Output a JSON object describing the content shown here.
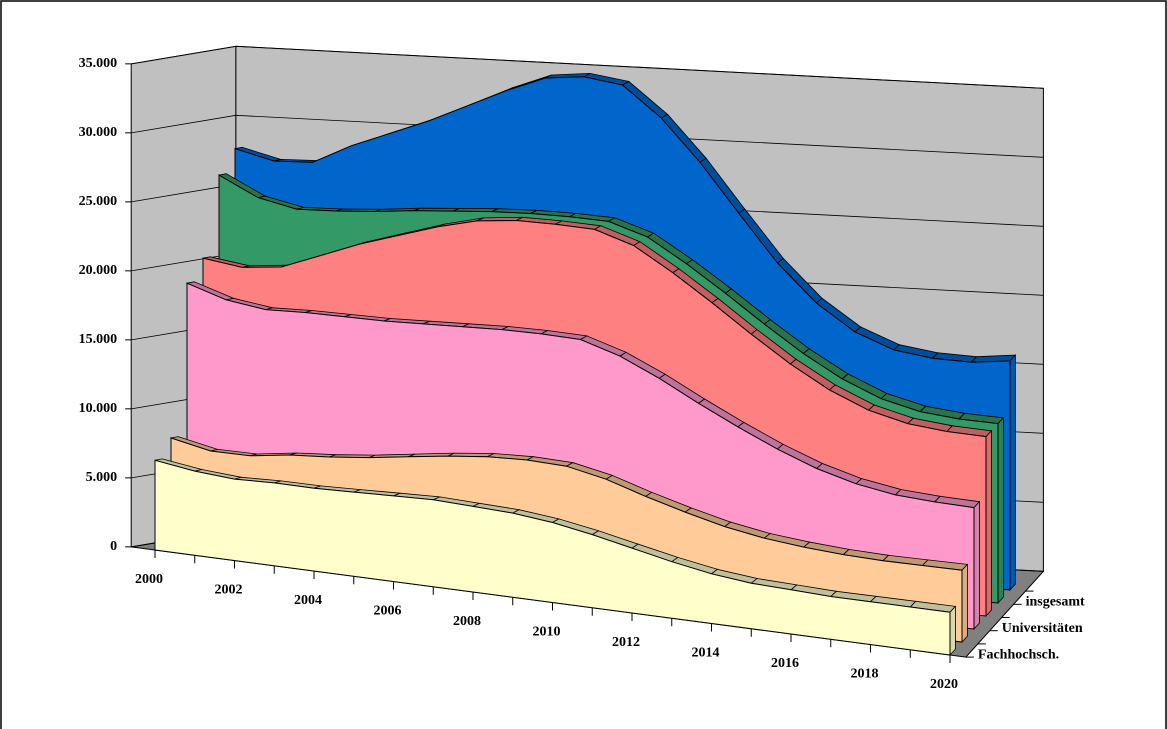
{
  "chart_data": {
    "type": "area3d",
    "x": [
      2000,
      2001,
      2002,
      2003,
      2004,
      2005,
      2006,
      2007,
      2008,
      2009,
      2010,
      2011,
      2012,
      2013,
      2014,
      2015,
      2016,
      2017,
      2018,
      2019,
      2020
    ],
    "xticks": [
      2000,
      2002,
      2004,
      2006,
      2008,
      2010,
      2012,
      2014,
      2016,
      2018,
      2020
    ],
    "ylim": [
      0,
      35000
    ],
    "yticks": [
      0,
      {
        "value": 5000,
        "label": "5.000"
      },
      {
        "value": 10000,
        "label": "10.000"
      },
      {
        "value": 15000,
        "label": "15.000"
      },
      {
        "value": 20000,
        "label": "20.000"
      },
      {
        "value": 25000,
        "label": "25.000"
      },
      {
        "value": 30000,
        "label": "30.000"
      },
      {
        "value": 35000,
        "label": "35.000"
      }
    ],
    "grid": true,
    "z_categories": [
      "Fachhochsch.",
      null,
      "Universitäten",
      null,
      "insgesamt",
      null
    ],
    "series": [
      {
        "color": "#ffffcc",
        "values": [
          6500,
          6100,
          5900,
          6000,
          6000,
          6100,
          6200,
          6300,
          6200,
          6100,
          5800,
          5300,
          4700,
          4100,
          3600,
          3300,
          3200,
          3100,
          3100,
          3100,
          3100
        ]
      },
      {
        "color": "#ffcc99",
        "values": [
          7900,
          7300,
          7300,
          7700,
          7900,
          8200,
          8600,
          9000,
          9300,
          9400,
          9300,
          8700,
          7800,
          7000,
          6300,
          5800,
          5500,
          5300,
          5200,
          5200,
          5200
        ]
      },
      {
        "color": "#ff99cc",
        "values": [
          18900,
          18000,
          17600,
          17700,
          17700,
          17700,
          17800,
          17900,
          18000,
          18000,
          17900,
          17000,
          15700,
          14200,
          12800,
          11500,
          10400,
          9600,
          9100,
          8900,
          8800
        ]
      },
      {
        "color": "#ff8080",
        "values": [
          20500,
          20100,
          20400,
          21500,
          22600,
          23500,
          24400,
          25100,
          25400,
          25400,
          25300,
          24400,
          22700,
          20800,
          18800,
          16900,
          15300,
          14100,
          13400,
          13100,
          13000
        ]
      },
      {
        "color": "#339966",
        "values": [
          26300,
          24900,
          24300,
          24400,
          24600,
          24900,
          25100,
          25300,
          25400,
          25400,
          25300,
          24400,
          22700,
          20800,
          18800,
          16900,
          15300,
          14100,
          13400,
          13100,
          13000
        ]
      },
      {
        "color": "#0066cc",
        "values": [
          28000,
          27300,
          27400,
          28800,
          29900,
          31000,
          32300,
          33600,
          34700,
          35000,
          34600,
          32400,
          29400,
          25900,
          22500,
          19800,
          17900,
          16800,
          16400,
          16300,
          16600
        ]
      }
    ]
  }
}
